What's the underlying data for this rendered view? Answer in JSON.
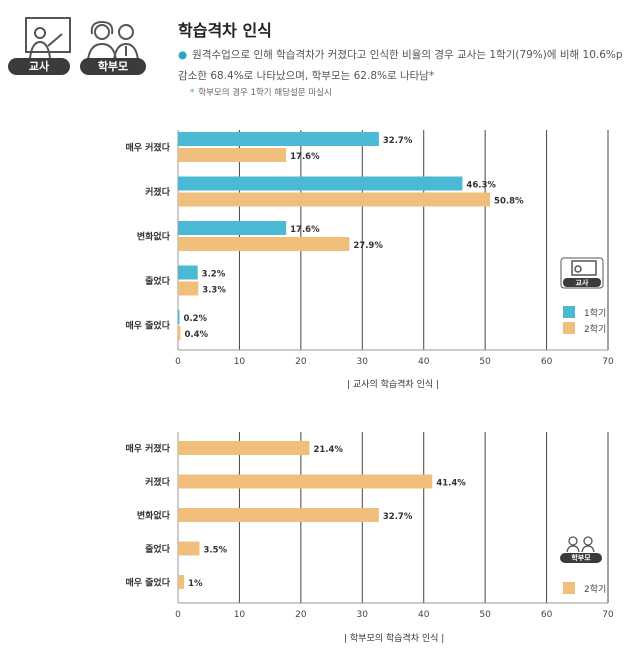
{
  "header": {
    "title": "학습격차 인식",
    "description": "원격수업으로 인해 학습격차가 커졌다고 인식한 비율의 경우 교사는 1학기(79%)에 비해 10.6%p 감소한 68.4%로 나타났으며, 학부모는 62.8%로 나타남*",
    "note": "학부모의 경우 1학기 해당설문 미실시",
    "badges": [
      "교사",
      "학부모"
    ]
  },
  "colors": {
    "first_semester": "#4bb8d4",
    "second_semester": "#f0bf7c",
    "grid": "#444444"
  },
  "icons": [
    "teacher-icon",
    "parent-icon"
  ],
  "chart_data": [
    {
      "type": "bar",
      "orientation": "horizontal",
      "categories": [
        "매우 커졌다",
        "커졌다",
        "변화없다",
        "줄었다",
        "매우 줄었다"
      ],
      "series": [
        {
          "name": "1학기",
          "values": [
            32.7,
            46.3,
            17.6,
            3.2,
            0.2
          ],
          "labels": [
            "32.7%",
            "46.3%",
            "17.6%",
            "3.2%",
            "0.2%"
          ]
        },
        {
          "name": "2학기",
          "values": [
            17.6,
            50.8,
            27.9,
            3.3,
            0.4
          ],
          "labels": [
            "17.6%",
            "50.8%",
            "27.9%",
            "3.3%",
            "0.4%"
          ]
        }
      ],
      "xlim": [
        0,
        70
      ],
      "xticks": [
        "0",
        "10",
        "20",
        "30",
        "40",
        "50",
        "60",
        "70"
      ],
      "caption": "| 교사의 학습격차 인식 |",
      "legend_badge": "교사",
      "legend_placement": "right"
    },
    {
      "type": "bar",
      "orientation": "horizontal",
      "categories": [
        "매우 커졌다",
        "커졌다",
        "변화없다",
        "줄었다",
        "매우 줄었다"
      ],
      "series": [
        {
          "name": "2학기",
          "values": [
            21.4,
            41.4,
            32.7,
            3.5,
            1
          ],
          "labels": [
            "21.4%",
            "41.4%",
            "32.7%",
            "3.5%",
            "1%"
          ]
        }
      ],
      "xlim": [
        0,
        70
      ],
      "xticks": [
        "0",
        "10",
        "20",
        "30",
        "40",
        "50",
        "60",
        "70"
      ],
      "caption": "| 학부모의 학습격차 인식 |",
      "legend_badge": "학부모",
      "legend_placement": "right"
    }
  ]
}
